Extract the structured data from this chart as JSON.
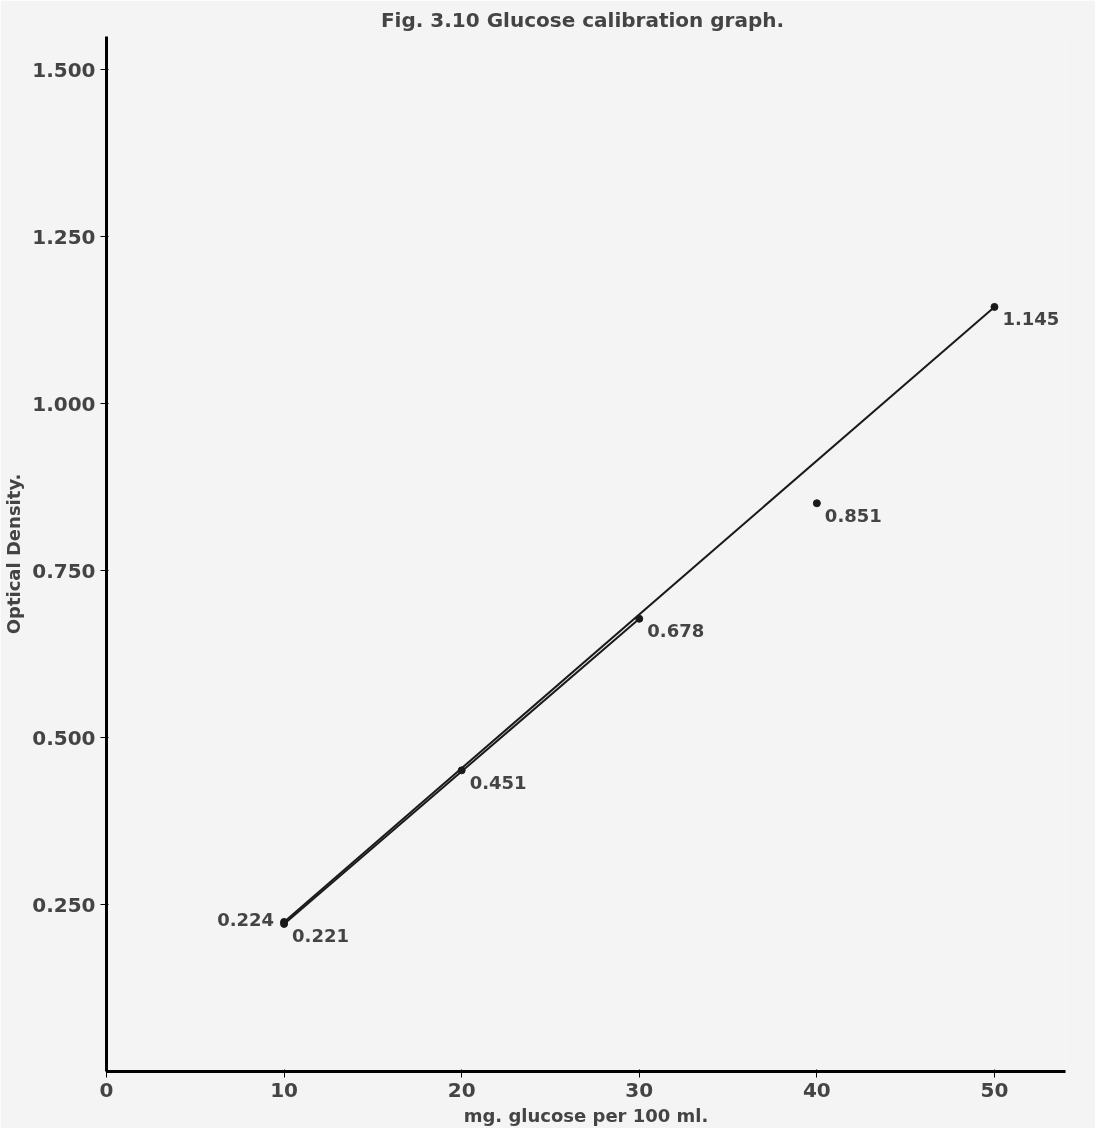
{
  "chart_data": {
    "type": "scatter",
    "title": "Fig. 3.10  Glucose calibration graph.",
    "xlabel": "mg. glucose per 100 ml.",
    "ylabel": "Optical Density.",
    "xlim": [
      0,
      54
    ],
    "ylim": [
      0,
      1.55
    ],
    "xticks": [
      0,
      10,
      20,
      30,
      40,
      50
    ],
    "yticks": [
      {
        "value": 0.25,
        "label": "0.250"
      },
      {
        "value": 0.5,
        "label": "0.500"
      },
      {
        "value": 0.75,
        "label": "0.750"
      },
      {
        "value": 1.0,
        "label": "1.000"
      },
      {
        "value": 1.25,
        "label": "1.250"
      },
      {
        "value": 1.5,
        "label": "1.500"
      }
    ],
    "grid": false,
    "series": [
      {
        "marker": "circle",
        "color": "#1a1a1a",
        "x": [
          10,
          10,
          20,
          30,
          40,
          50
        ],
        "values": [
          0.224,
          0.221,
          0.451,
          0.678,
          0.851,
          1.145
        ],
        "data_labels": true
      },
      {
        "type": "line",
        "color": "#1a1a1a",
        "x": [
          10,
          50
        ],
        "values": [
          0.224,
          1.145
        ]
      },
      {
        "type": "line",
        "color": "#1a1a1a",
        "x": [
          10,
          30
        ],
        "values": [
          0.221,
          0.678
        ]
      }
    ]
  }
}
